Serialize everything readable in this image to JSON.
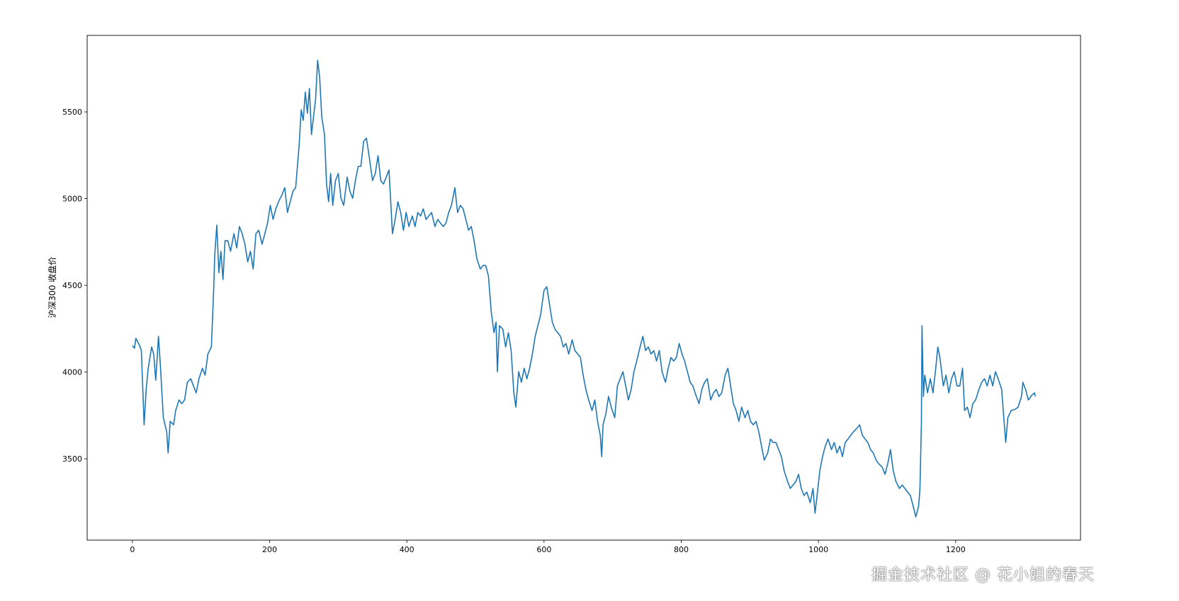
{
  "chart_data": {
    "type": "line",
    "title": "",
    "xlabel": "",
    "ylabel": "沪深300 收盘价",
    "xlim": [
      -66,
      1382
    ],
    "ylim": [
      3031,
      5941
    ],
    "xticks": [
      0,
      200,
      400,
      600,
      800,
      1000,
      1200
    ],
    "yticks": [
      3500,
      4000,
      4500,
      5000,
      5500
    ],
    "grid": false,
    "line_color": "#1f77b4",
    "series": [
      {
        "x": [
          0,
          3,
          5,
          10,
          13,
          17,
          20,
          23,
          28,
          31,
          34,
          38,
          41,
          45,
          50,
          52,
          55,
          60,
          63,
          68,
          72,
          76,
          80,
          85,
          89,
          93,
          97,
          102,
          106,
          110,
          115,
          118,
          120,
          123,
          126,
          129,
          132,
          135,
          139,
          143,
          148,
          152,
          156,
          160,
          164,
          168,
          172,
          176,
          180,
          184,
          189,
          193,
          197,
          201,
          205,
          209,
          213,
          218,
          222,
          226,
          230,
          234,
          238,
          243,
          246,
          249,
          252,
          255,
          258,
          261,
          264,
          267,
          270,
          273,
          276,
          280,
          283,
          286,
          289,
          292,
          296,
          300,
          304,
          308,
          313,
          317,
          321,
          325,
          329,
          333,
          337,
          341,
          345,
          350,
          354,
          358,
          362,
          366,
          370,
          374,
          379,
          383,
          387,
          391,
          395,
          399,
          403,
          408,
          412,
          416,
          420,
          424,
          428,
          432,
          436,
          441,
          445,
          449,
          453,
          457,
          461,
          465,
          470,
          474,
          478,
          482,
          486,
          490,
          494,
          498,
          502,
          507,
          511,
          515,
          519,
          523,
          527,
          530,
          532,
          535,
          540,
          544,
          548,
          552,
          556,
          559,
          563,
          567,
          571,
          575,
          579,
          583,
          587,
          591,
          595,
          600,
          604,
          608,
          612,
          616,
          620,
          624,
          628,
          632,
          636,
          641,
          645,
          649,
          653,
          657,
          661,
          665,
          670,
          674,
          678,
          682,
          684,
          686,
          690,
          694,
          698,
          703,
          707,
          711,
          715,
          719,
          723,
          727,
          731,
          735,
          740,
          744,
          748,
          752,
          756,
          760,
          764,
          768,
          772,
          777,
          781,
          785,
          789,
          793,
          797,
          801,
          805,
          809,
          813,
          817,
          822,
          826,
          830,
          834,
          838,
          843,
          847,
          851,
          855,
          859,
          864,
          868,
          872,
          876,
          880,
          884,
          888,
          893,
          897,
          901,
          905,
          909,
          913,
          917,
          921,
          926,
          930,
          934,
          938,
          942,
          946,
          950,
          955,
          959,
          963,
          967,
          971,
          975,
          979,
          983,
          988,
          992,
          995,
          998,
          1002,
          1006,
          1010,
          1014,
          1019,
          1023,
          1027,
          1031,
          1035,
          1039,
          1043,
          1047,
          1051,
          1056,
          1060,
          1064,
          1068,
          1072,
          1076,
          1080,
          1084,
          1088,
          1093,
          1097,
          1101,
          1105,
          1109,
          1113,
          1118,
          1122,
          1126,
          1130,
          1134,
          1138,
          1142,
          1146,
          1148,
          1150,
          1151,
          1153,
          1155,
          1159,
          1163,
          1167,
          1171,
          1174,
          1177,
          1182,
          1186,
          1190,
          1194,
          1198,
          1202,
          1206,
          1210,
          1213,
          1217,
          1221,
          1225,
          1229,
          1234,
          1238,
          1242,
          1246,
          1250,
          1254,
          1258,
          1262,
          1267,
          1271,
          1273,
          1276,
          1281,
          1287,
          1291,
          1296,
          1298,
          1302,
          1306,
          1311,
          1315,
          1316
        ],
        "y": [
          4153,
          4137,
          4194,
          4157,
          4124,
          3696,
          3900,
          4022,
          4145,
          4104,
          3953,
          4206,
          4022,
          3737,
          3655,
          3533,
          3716,
          3696,
          3778,
          3839,
          3818,
          3839,
          3941,
          3961,
          3920,
          3880,
          3961,
          4022,
          3982,
          4104,
          4145,
          4430,
          4676,
          4847,
          4573,
          4696,
          4533,
          4757,
          4757,
          4696,
          4798,
          4716,
          4839,
          4798,
          4737,
          4635,
          4696,
          4594,
          4798,
          4818,
          4737,
          4798,
          4859,
          4961,
          4880,
          4941,
          4982,
          5022,
          5063,
          4920,
          4982,
          5043,
          5063,
          5308,
          5512,
          5451,
          5614,
          5492,
          5635,
          5369,
          5471,
          5573,
          5798,
          5696,
          5471,
          5369,
          5084,
          4982,
          5145,
          4961,
          5104,
          5145,
          5002,
          4961,
          5124,
          5043,
          5002,
          5104,
          5186,
          5186,
          5329,
          5349,
          5247,
          5104,
          5145,
          5247,
          5104,
          5084,
          5124,
          5165,
          4798,
          4880,
          4982,
          4920,
          4818,
          4920,
          4839,
          4900,
          4839,
          4920,
          4900,
          4941,
          4880,
          4900,
          4920,
          4839,
          4880,
          4859,
          4839,
          4859,
          4920,
          4961,
          5063,
          4920,
          4961,
          4941,
          4880,
          4818,
          4839,
          4757,
          4655,
          4594,
          4614,
          4614,
          4553,
          4349,
          4227,
          4288,
          4002,
          4267,
          4247,
          4145,
          4227,
          4124,
          3880,
          3798,
          4002,
          3941,
          4022,
          3961,
          4022,
          4104,
          4206,
          4267,
          4329,
          4471,
          4492,
          4390,
          4288,
          4247,
          4227,
          4206,
          4145,
          4165,
          4104,
          4186,
          4124,
          4104,
          4084,
          3982,
          3900,
          3839,
          3778,
          3839,
          3716,
          3635,
          3512,
          3696,
          3757,
          3859,
          3798,
          3737,
          3920,
          3961,
          4002,
          3920,
          3839,
          3900,
          4002,
          4063,
          4145,
          4206,
          4124,
          4145,
          4104,
          4124,
          4063,
          4124,
          4002,
          3941,
          4022,
          4084,
          4063,
          4084,
          4165,
          4104,
          4063,
          4002,
          3941,
          3920,
          3859,
          3818,
          3900,
          3941,
          3961,
          3839,
          3880,
          3900,
          3859,
          3880,
          3982,
          4022,
          3920,
          3818,
          3778,
          3716,
          3798,
          3737,
          3778,
          3716,
          3696,
          3716,
          3655,
          3573,
          3492,
          3533,
          3614,
          3594,
          3594,
          3553,
          3512,
          3431,
          3369,
          3329,
          3349,
          3369,
          3410,
          3329,
          3288,
          3308,
          3247,
          3329,
          3186,
          3288,
          3431,
          3512,
          3573,
          3614,
          3553,
          3594,
          3533,
          3573,
          3512,
          3594,
          3614,
          3635,
          3655,
          3676,
          3696,
          3635,
          3614,
          3594,
          3553,
          3533,
          3492,
          3471,
          3451,
          3410,
          3471,
          3553,
          3431,
          3369,
          3329,
          3349,
          3329,
          3308,
          3288,
          3227,
          3165,
          3227,
          3329,
          3696,
          4267,
          3859,
          3982,
          3880,
          3961,
          3880,
          4022,
          4145,
          4084,
          3920,
          3982,
          3880,
          3961,
          4002,
          3920,
          3920,
          4022,
          3778,
          3798,
          3737,
          3818,
          3839,
          3900,
          3941,
          3961,
          3920,
          3982,
          3920,
          4002,
          3961,
          3900,
          3696,
          3594,
          3737,
          3778,
          3786,
          3798,
          3859,
          3941,
          3900,
          3839,
          3867,
          3880,
          3859
        ]
      }
    ]
  },
  "watermark": "掘金技术社区 @ 花小姐的春天"
}
